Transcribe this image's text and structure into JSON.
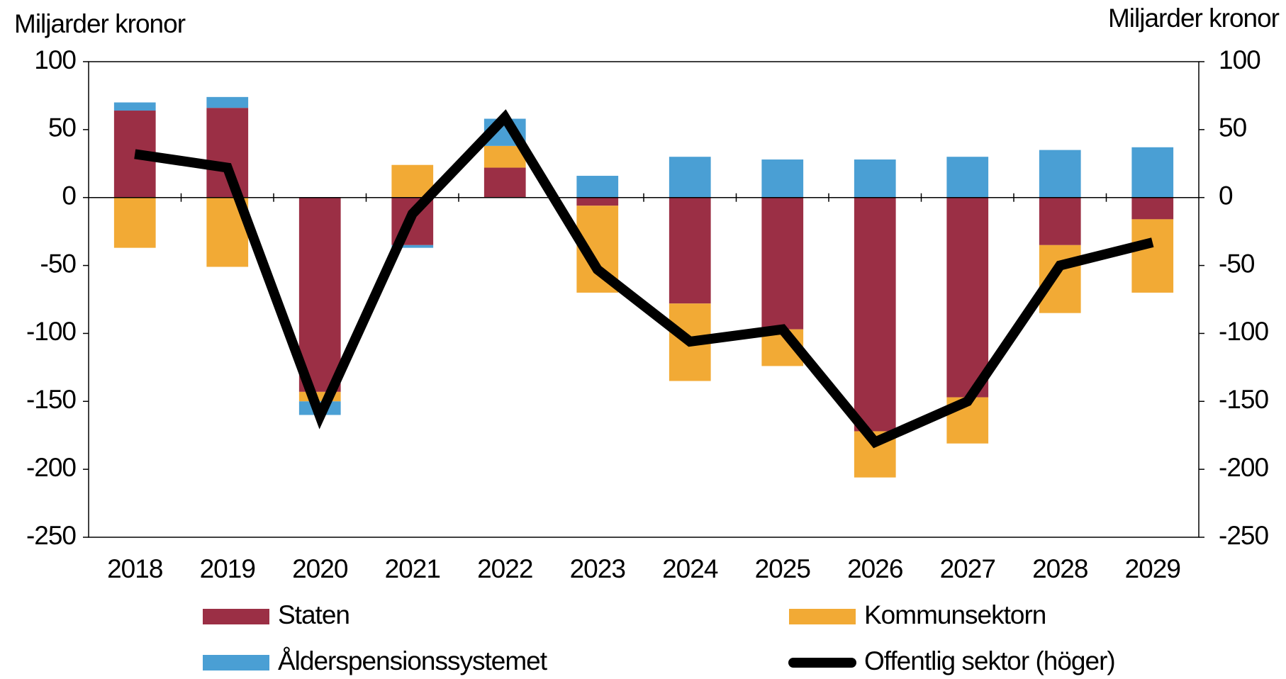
{
  "chart_data": {
    "type": "bar",
    "stacked": true,
    "y_label": "Miljarder kronor",
    "y2_label": "Miljarder kronor",
    "categories": [
      "2018",
      "2019",
      "2020",
      "2021",
      "2022",
      "2023",
      "2024",
      "2025",
      "2026",
      "2027",
      "2028",
      "2029"
    ],
    "series": [
      {
        "name": "Staten",
        "color": "#9b2f45",
        "values": [
          64,
          66,
          -143,
          -35,
          22,
          -6,
          -78,
          -97,
          -172,
          -147,
          -35,
          -16
        ]
      },
      {
        "name": "Kommunsektorn",
        "color": "#f2aa35",
        "values": [
          -37,
          -51,
          -7,
          24,
          16,
          -64,
          -57,
          -27,
          -34,
          -34,
          -50,
          -54
        ]
      },
      {
        "name": "Ålderspensionssystemet",
        "color": "#4a9fd4",
        "values": [
          6,
          8,
          -10,
          -2,
          20,
          16,
          30,
          28,
          28,
          30,
          35,
          37
        ]
      },
      {
        "name": "Offentlig sektor (höger)",
        "color": "#000000",
        "type": "line",
        "axis": "y2",
        "values": [
          32,
          22,
          -161,
          -12,
          59,
          -53,
          -106,
          -97,
          -180,
          -150,
          -50,
          -33
        ]
      }
    ],
    "ylim": [
      -250,
      100
    ],
    "yticks": [
      -250,
      -200,
      -150,
      -100,
      -50,
      0,
      50,
      100
    ],
    "y2lim": [
      -250,
      100
    ],
    "y2ticks": [
      -250,
      -200,
      -150,
      -100,
      -50,
      0,
      50,
      100
    ],
    "grid": false
  }
}
